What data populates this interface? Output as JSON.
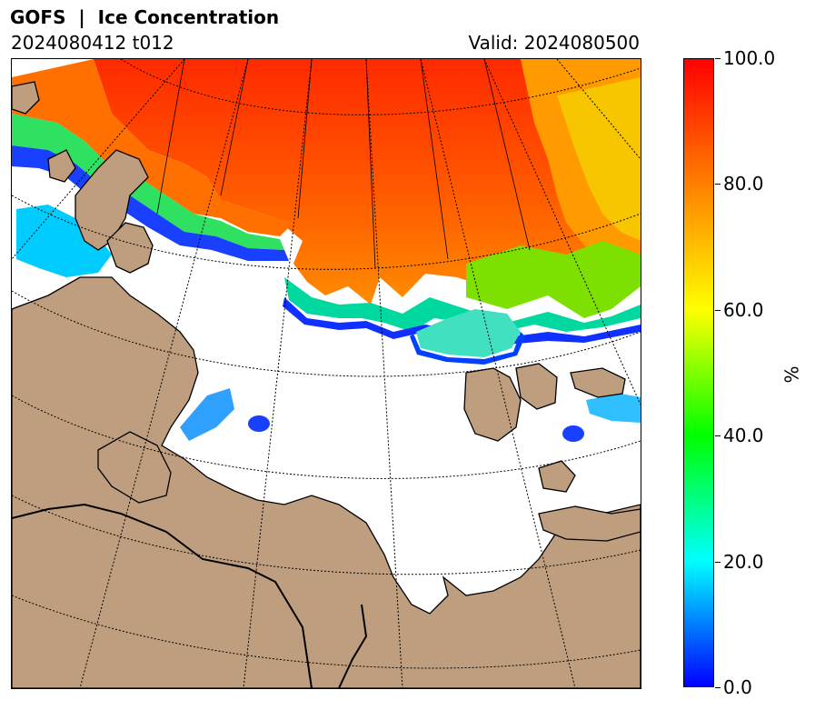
{
  "header": {
    "title": "GOFS  |  Ice Concentration",
    "init_time": "2024080412 t012",
    "valid_time": "Valid: 2024080500"
  },
  "map": {
    "projection": "polar-stereographic",
    "graticule": "dotted",
    "colors": {
      "land": "#bf9e80",
      "ocean_no_ice": "#ffffff",
      "coastline": "#000000"
    }
  },
  "colorbar": {
    "unit": "%",
    "min": 0,
    "max": 100,
    "ticks": [
      {
        "value": 0,
        "label": "0.0"
      },
      {
        "value": 20,
        "label": "20.0"
      },
      {
        "value": 40,
        "label": "40.0"
      },
      {
        "value": 60,
        "label": "60.0"
      },
      {
        "value": 80,
        "label": "80.0"
      },
      {
        "value": 100,
        "label": "100.0"
      }
    ],
    "colormap": [
      "#0000ff",
      "#00ffff",
      "#00ff00",
      "#ffff00",
      "#ff8000",
      "#ff0000"
    ]
  }
}
